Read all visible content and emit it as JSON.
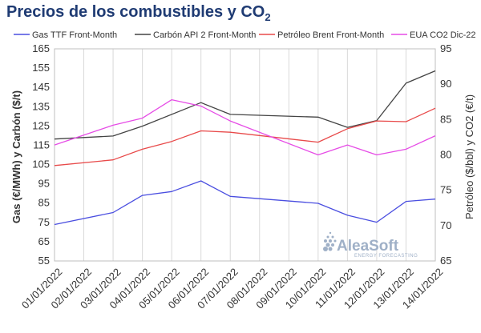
{
  "title": {
    "main": "Precios de los combustibles y CO",
    "sub": "2"
  },
  "chart_data": {
    "type": "line",
    "categories": [
      "01/01/2022",
      "02/01/2022",
      "03/01/2022",
      "04/01/2022",
      "05/01/2022",
      "06/01/2022",
      "07/01/2022",
      "08/01/2022",
      "09/01/2022",
      "10/01/2022",
      "11/01/2022",
      "12/01/2022",
      "13/01/2022",
      "14/01/2022"
    ],
    "ylabel_left": "Gas (€/MWh) y Carbón ($/t)",
    "ylabel_right": "Petróleo ($/bbl) y CO2 (€/t)",
    "ylim_left": [
      55,
      165
    ],
    "yticks_left": [
      55,
      65,
      75,
      85,
      95,
      105,
      115,
      125,
      135,
      145,
      155,
      165
    ],
    "ylim_right": [
      65,
      95
    ],
    "yticks_right": [
      65,
      70,
      75,
      80,
      85,
      90,
      95
    ],
    "grid": "vertical",
    "legend_position": "top",
    "series": [
      {
        "name": "Gas TTF Front-Month",
        "axis": "left",
        "color": "#4a4ee0",
        "values": [
          73.9,
          null,
          80.1,
          89.0,
          91.0,
          96.5,
          88.5,
          null,
          null,
          84.9,
          78.7,
          75.1,
          85.9,
          87.1
        ]
      },
      {
        "name": "Carbón API 2 Front-Month",
        "axis": "left",
        "color": "#444444",
        "values": [
          118.2,
          null,
          119.8,
          124.9,
          null,
          137.1,
          131.0,
          null,
          null,
          129.6,
          124.3,
          127.8,
          147.2,
          153.6
        ]
      },
      {
        "name": "Petróleo Brent Front-Month",
        "axis": "right",
        "color": "#e84a4a",
        "values": [
          78.5,
          null,
          79.3,
          80.8,
          81.9,
          83.4,
          83.2,
          null,
          null,
          81.8,
          83.7,
          84.8,
          84.7,
          86.6
        ]
      },
      {
        "name": "EUA CO2 Dic-22",
        "axis": "right",
        "color": "#e64ce6",
        "values": [
          81.4,
          null,
          84.2,
          85.2,
          87.8,
          86.9,
          84.8,
          null,
          null,
          80.0,
          81.4,
          80.0,
          80.8,
          82.7
        ]
      }
    ]
  },
  "watermark": {
    "brand": "AleaSoft",
    "tagline": "ENERGY FORECASTING"
  }
}
